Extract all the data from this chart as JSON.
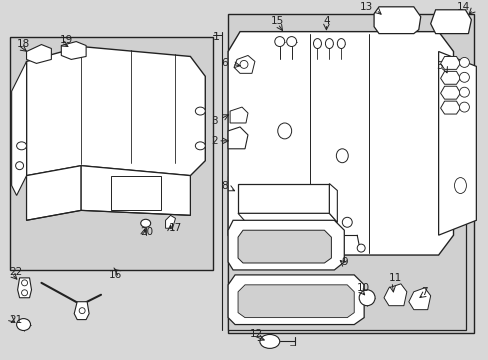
{
  "bg_color": "#d8d8d8",
  "panel_bg": "#d0d0d0",
  "white": "#ffffff",
  "dark": "#222222",
  "mid": "#888888",
  "figsize": [
    4.89,
    3.6
  ],
  "dpi": 100
}
